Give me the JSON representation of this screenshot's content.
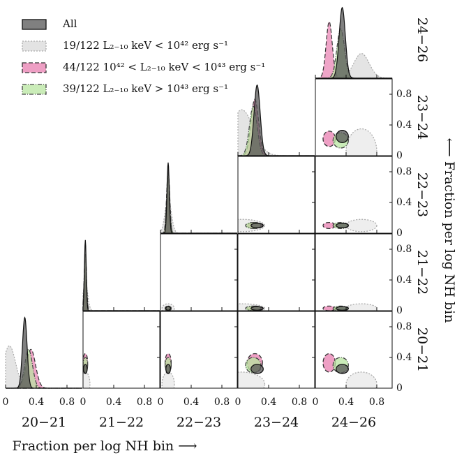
{
  "chart_data": {
    "type": "corner",
    "xlabel": "Fraction per log NH bin ⟶",
    "ylabel": "⟵ Fraction per log NH bin",
    "params": [
      "20−21",
      "21−22",
      "22−23",
      "23−24",
      "24−26"
    ],
    "xlim": [
      0,
      1
    ],
    "xticks": [
      0,
      0.4,
      0.8
    ],
    "ylim": [
      0,
      1
    ],
    "yticks": [
      0,
      0.4,
      0.8
    ],
    "series": [
      {
        "name": "19/122 L₂₋₁₀ keV < 10⁴² erg s⁻¹",
        "color": "#d9d9d9",
        "edge": "#aaaaaa",
        "dash": "2,2",
        "peaks": [
          0.05,
          0.03,
          0.1,
          0.05,
          0.6
        ],
        "spreads": [
          0.08,
          0.03,
          0.04,
          0.15,
          0.1
        ],
        "heights": [
          0.6,
          0.4,
          0.5,
          0.65,
          0.35
        ]
      },
      {
        "name": "44/122 10⁴² < L₂₋₁₀ keV < 10⁴³ erg s⁻¹",
        "color": "#e87fb0",
        "edge": "#333333",
        "dash": "6,3",
        "peaks": [
          0.33,
          0.03,
          0.1,
          0.22,
          0.18
        ],
        "spreads": [
          0.06,
          0.015,
          0.02,
          0.05,
          0.04
        ],
        "heights": [
          0.55,
          0.8,
          0.9,
          0.8,
          0.8
        ]
      },
      {
        "name": "39/122 L₂₋₁₀ keV > 10⁴³ erg s⁻¹",
        "color": "#b8e6a0",
        "edge": "#444444",
        "dash": "6,2,1,2",
        "peaks": [
          0.3,
          0.03,
          0.1,
          0.2,
          0.33
        ],
        "spreads": [
          0.05,
          0.015,
          0.02,
          0.05,
          0.05
        ],
        "heights": [
          0.55,
          0.8,
          0.85,
          0.7,
          0.7
        ]
      },
      {
        "name": "All",
        "color": "#555555",
        "edge": "#111111",
        "dash": "none",
        "peaks": [
          0.25,
          0.03,
          0.1,
          0.25,
          0.35
        ],
        "spreads": [
          0.03,
          0.012,
          0.015,
          0.04,
          0.04
        ],
        "heights": [
          1,
          1,
          1,
          1,
          1
        ]
      }
    ],
    "legend_order": [
      3,
      0,
      1,
      2
    ]
  }
}
